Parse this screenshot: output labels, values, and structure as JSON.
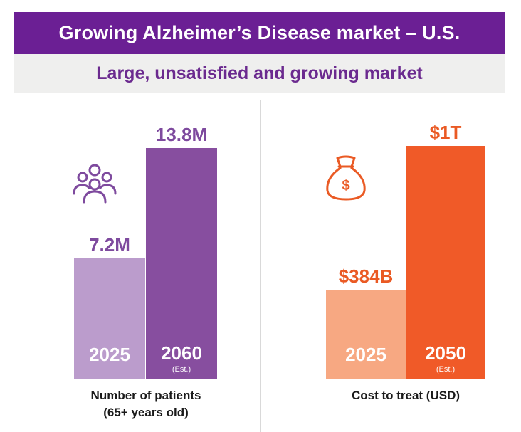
{
  "header": {
    "title": "Growing Alzheimer’s Disease market – U.S.",
    "subtitle": "Large, unsatisfied and growing market"
  },
  "colors": {
    "title_bg": "#6b1f94",
    "subtitle_text": "#6b2a8f",
    "patients_light": "#bb9ccc",
    "patients_dark": "#874e9f",
    "patients_label": "#7e4a9e",
    "cost_light": "#f7a882",
    "cost_dark": "#f05a28",
    "cost_label": "#ea5a24"
  },
  "icons": {
    "patients": "people-group-icon",
    "cost": "money-bag-icon"
  },
  "chart_data": [
    {
      "type": "bar",
      "title": "Number of patients",
      "caption_line1": "Number of patients",
      "caption_line2": "(65+ years old)",
      "categories": [
        "2025",
        "2060"
      ],
      "category_notes": [
        "",
        "(Est.)"
      ],
      "values": [
        7.2,
        13.8
      ],
      "value_labels": [
        "7.2M",
        "13.8M"
      ],
      "unit": "M",
      "ylim": [
        0,
        13.8
      ]
    },
    {
      "type": "bar",
      "title": "Cost to treat (USD)",
      "caption_line1": "Cost to treat (USD)",
      "caption_line2": "",
      "categories": [
        "2025",
        "2050"
      ],
      "category_notes": [
        "",
        "(Est.)"
      ],
      "values": [
        384,
        1000
      ],
      "value_labels": [
        "$384B",
        "$1T"
      ],
      "unit": "B USD",
      "ylim": [
        0,
        1000
      ]
    }
  ]
}
